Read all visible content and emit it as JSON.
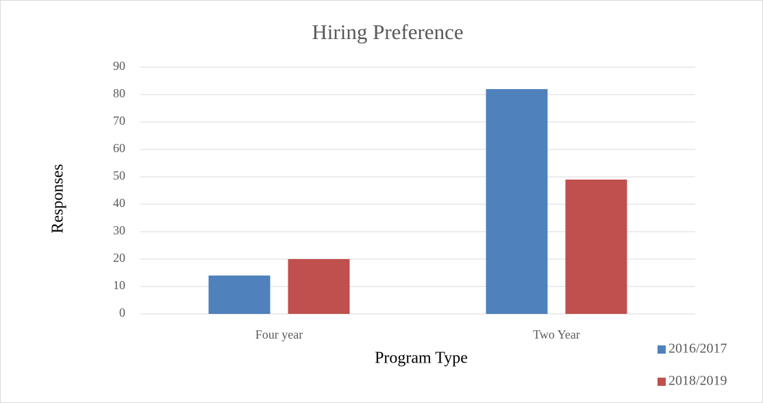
{
  "chart_data": {
    "type": "bar",
    "title": "Hiring Preference",
    "x_label": "Program Type",
    "y_label": "Responses",
    "categories": [
      "Four year",
      "Two Year"
    ],
    "series": [
      {
        "name": "2016/2017",
        "color": "#4f81bd",
        "values": [
          14,
          82
        ]
      },
      {
        "name": "2018/2019",
        "color": "#c0504d",
        "values": [
          20,
          49
        ]
      }
    ],
    "ylim": [
      0,
      90
    ],
    "yticks": [
      0,
      10,
      20,
      30,
      40,
      50,
      60,
      70,
      80,
      90
    ],
    "grid": true,
    "legend": "bottom-right"
  }
}
